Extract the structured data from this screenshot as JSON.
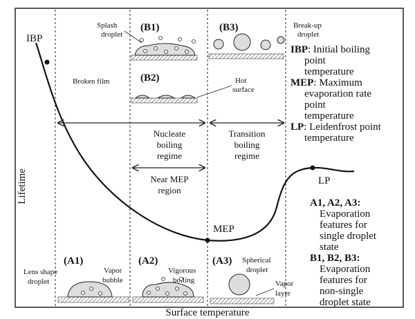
{
  "curve_labels": {
    "ibp": "IBP",
    "mep": "MEP",
    "lp": "LP"
  },
  "axes": {
    "y_label": "Lifetime",
    "x_label": "Surface temperature"
  },
  "top": {
    "b1": {
      "label": "(B1)",
      "note": [
        "Splash",
        "droplet"
      ]
    },
    "b2": {
      "label": "(B2)",
      "note": "Broken film",
      "surface": [
        "Hot",
        "surface"
      ]
    },
    "b3": {
      "label": "(B3)",
      "note": [
        "Break-up",
        "droplet"
      ]
    }
  },
  "legend": [
    {
      "term": "IBP",
      "lines": [
        ": Initial boiling",
        "point",
        "temperature"
      ]
    },
    {
      "term": "MEP",
      "lines": [
        ": Maximum",
        "evaporation rate",
        "point",
        "temperature"
      ]
    },
    {
      "term": "LP",
      "lines": [
        ": Leidenfrost point",
        "temperature"
      ]
    }
  ],
  "regimes": {
    "nucleate": [
      "Nucleate",
      "boiling",
      "regime"
    ],
    "transition": [
      "Transition",
      "boiling",
      "regime"
    ],
    "near_mep": [
      "Near MEP",
      "region"
    ]
  },
  "features": [
    {
      "term": "A1, A2, A3",
      "colon": ":",
      "lines": [
        "Evaporation",
        "features for",
        "single droplet",
        "state"
      ]
    },
    {
      "term": "B1, B2, B3",
      "colon": ":",
      "lines": [
        "Evaporation",
        "features for",
        "non-single",
        "droplet state"
      ]
    }
  ],
  "bottom": {
    "a1": {
      "label": "(A1)",
      "note": [
        "Lens shape",
        "droplet"
      ],
      "bubble": [
        "Vapor",
        "bubble"
      ]
    },
    "a2": {
      "label": "(A2)",
      "note": [
        "Vigorous",
        "boiling"
      ]
    },
    "a3": {
      "label": "(A3)",
      "note": [
        "Spherical",
        "droplet"
      ],
      "layer": [
        "Vapor",
        "layer"
      ]
    }
  }
}
